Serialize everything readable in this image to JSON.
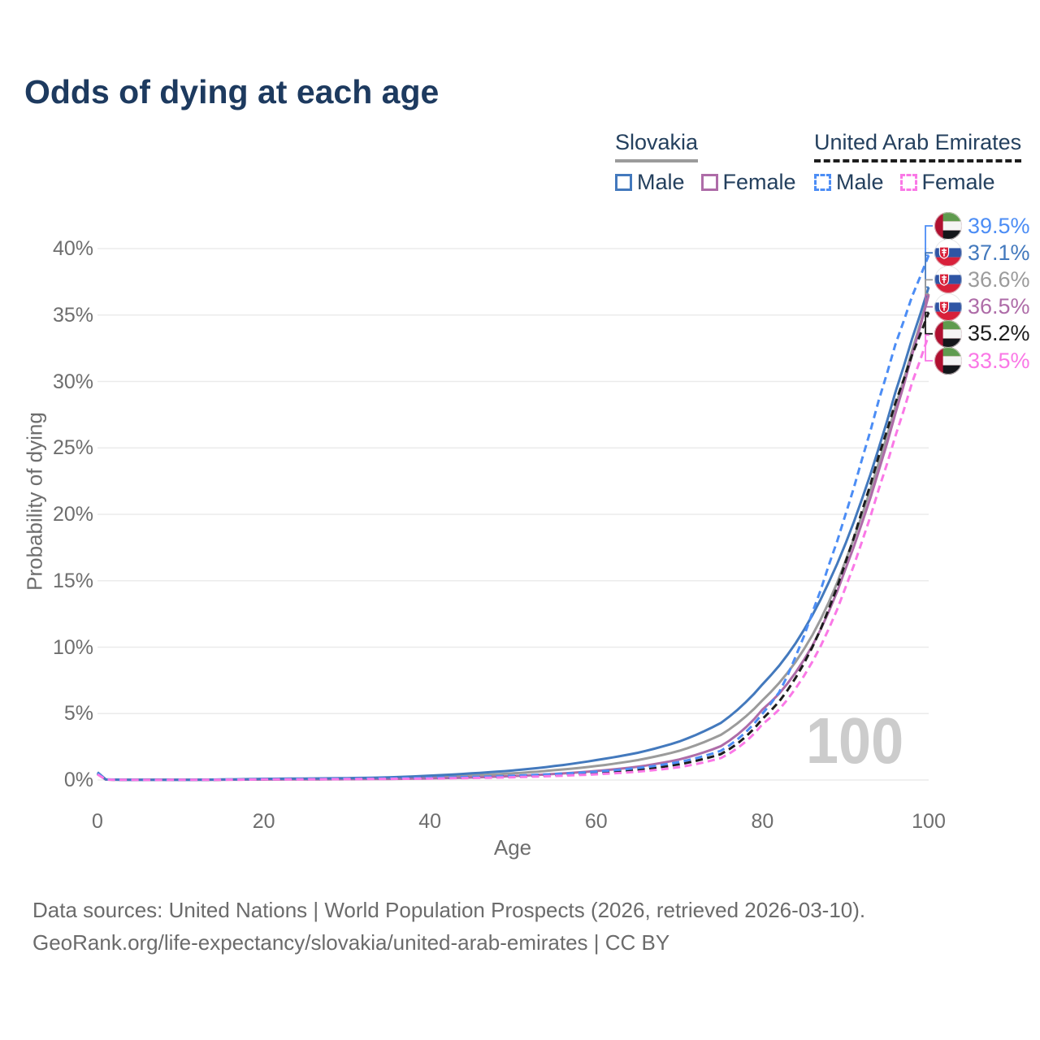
{
  "title": "Odds of dying at each age",
  "watermark": "100",
  "legend": {
    "groups": [
      {
        "country": "Slovakia",
        "underline_style": "solid",
        "underline_color": "#9b9b9b",
        "items": [
          {
            "label": "Male",
            "color": "#4379bd",
            "dashed": false
          },
          {
            "label": "Female",
            "color": "#ae6ca8",
            "dashed": false
          }
        ]
      },
      {
        "country": "United Arab Emirates",
        "underline_style": "dashed",
        "underline_color": "#1d1d1d",
        "items": [
          {
            "label": "Male",
            "color": "#4c8df5",
            "dashed": true
          },
          {
            "label": "Female",
            "color": "#fa78e6",
            "dashed": true
          }
        ]
      }
    ]
  },
  "chart_data": {
    "type": "line",
    "title": "Odds of dying at each age",
    "xlabel": "Age",
    "ylabel": "Probability of dying",
    "xlim": [
      0,
      100
    ],
    "ylim_percent": [
      0,
      40
    ],
    "grid": "horizontal",
    "legend_position": "top-right",
    "x_ticks": [
      {
        "value": 0,
        "label": "0"
      },
      {
        "value": 20,
        "label": "20"
      },
      {
        "value": 40,
        "label": "40"
      },
      {
        "value": 60,
        "label": "60"
      },
      {
        "value": 80,
        "label": "80"
      },
      {
        "value": 100,
        "label": "100"
      }
    ],
    "y_ticks": [
      {
        "value": 0,
        "label": "0%"
      },
      {
        "value": 5,
        "label": "5%"
      },
      {
        "value": 10,
        "label": "10%"
      },
      {
        "value": 15,
        "label": "15%"
      },
      {
        "value": 20,
        "label": "20%"
      },
      {
        "value": 25,
        "label": "25%"
      },
      {
        "value": 30,
        "label": "30%"
      },
      {
        "value": 35,
        "label": "35%"
      },
      {
        "value": 40,
        "label": "40%"
      }
    ],
    "x_control": [
      0,
      1,
      5,
      10,
      15,
      20,
      25,
      30,
      35,
      40,
      45,
      50,
      55,
      60,
      65,
      70,
      75,
      80,
      82,
      84,
      86,
      88,
      90,
      92,
      94,
      96,
      98,
      100
    ],
    "series": [
      {
        "id": "svk-both",
        "country": "Slovakia",
        "sex": "Both sexes",
        "color": "#9b9b9b",
        "dashed": false,
        "end_label": "36.6%",
        "values": [
          0.52,
          0.035,
          0.012,
          0.012,
          0.03,
          0.06,
          0.08,
          0.1,
          0.14,
          0.22,
          0.34,
          0.5,
          0.74,
          1.05,
          1.5,
          2.2,
          3.4,
          6.0,
          7.3,
          8.9,
          10.9,
          13.4,
          16.5,
          20.0,
          23.9,
          28.1,
          32.3,
          36.6
        ]
      },
      {
        "id": "svk-female",
        "country": "Slovakia",
        "sex": "Female",
        "color": "#ae6ca8",
        "dashed": false,
        "end_label": "36.5%",
        "values": [
          0.47,
          0.03,
          0.01,
          0.01,
          0.02,
          0.035,
          0.045,
          0.06,
          0.08,
          0.12,
          0.19,
          0.3,
          0.46,
          0.68,
          1.0,
          1.55,
          2.55,
          5.3,
          6.5,
          8.1,
          10.1,
          12.7,
          15.9,
          19.4,
          23.3,
          27.6,
          32.0,
          36.5
        ]
      },
      {
        "id": "svk-male",
        "country": "Slovakia",
        "sex": "Male",
        "color": "#4379bd",
        "dashed": false,
        "end_label": "37.1%",
        "values": [
          0.58,
          0.04,
          0.015,
          0.015,
          0.04,
          0.09,
          0.11,
          0.14,
          0.2,
          0.33,
          0.5,
          0.72,
          1.05,
          1.5,
          2.05,
          2.9,
          4.3,
          7.2,
          8.6,
          10.3,
          12.4,
          14.9,
          17.8,
          21.2,
          25.0,
          29.2,
          33.2,
          37.1
        ]
      },
      {
        "id": "uae-both",
        "country": "United Arab Emirates",
        "sex": "Both sexes",
        "color": "#1d1d1d",
        "dashed": true,
        "end_label": "35.2%",
        "values": [
          0.46,
          0.03,
          0.009,
          0.011,
          0.025,
          0.05,
          0.065,
          0.085,
          0.11,
          0.14,
          0.19,
          0.27,
          0.38,
          0.54,
          0.78,
          1.18,
          1.95,
          4.6,
          5.9,
          7.7,
          10.0,
          12.9,
          16.4,
          20.3,
          24.4,
          28.4,
          32.0,
          35.2
        ]
      },
      {
        "id": "uae-male",
        "country": "United Arab Emirates",
        "sex": "Male",
        "color": "#4c8df5",
        "dashed": true,
        "end_label": "39.5%",
        "values": [
          0.5,
          0.035,
          0.01,
          0.012,
          0.03,
          0.06,
          0.08,
          0.1,
          0.13,
          0.17,
          0.23,
          0.32,
          0.45,
          0.63,
          0.9,
          1.35,
          2.2,
          5.0,
          6.6,
          9.3,
          12.6,
          16.2,
          20.0,
          24.2,
          28.6,
          32.8,
          36.4,
          39.5
        ]
      },
      {
        "id": "uae-female",
        "country": "United Arab Emirates",
        "sex": "Female",
        "color": "#fa78e6",
        "dashed": true,
        "end_label": "33.5%",
        "values": [
          0.42,
          0.028,
          0.008,
          0.01,
          0.02,
          0.04,
          0.05,
          0.065,
          0.085,
          0.11,
          0.15,
          0.21,
          0.3,
          0.43,
          0.63,
          0.97,
          1.65,
          4.2,
          5.3,
          6.9,
          8.9,
          11.4,
          14.5,
          18.0,
          21.9,
          25.9,
          29.9,
          33.5
        ]
      }
    ]
  },
  "footer": {
    "line1": "Data sources: United Nations | World Population Prospects (2026, retrieved 2026-03-10).",
    "line2": "GeoRank.org/life-expectancy/slovakia/united-arab-emirates | CC BY"
  }
}
